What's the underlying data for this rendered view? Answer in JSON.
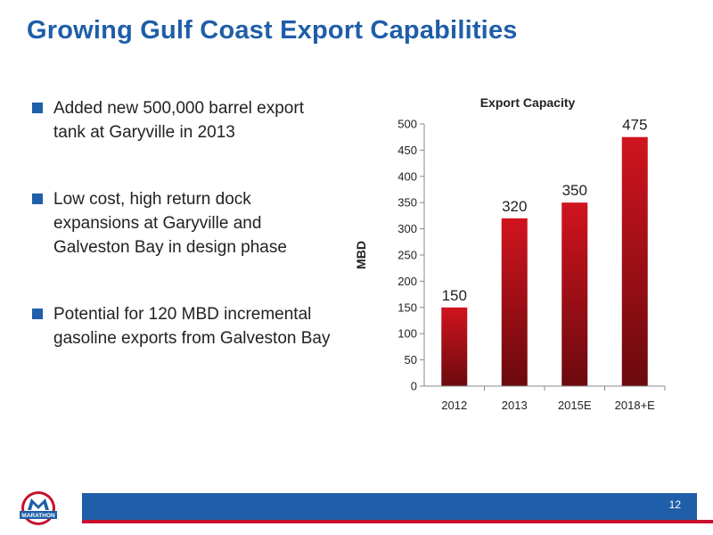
{
  "slide": {
    "title": "Growing Gulf Coast Export Capabilities",
    "page_number": "12"
  },
  "bullets": [
    "Added new 500,000 barrel export tank at Garyville in 2013",
    "Low cost, high return dock expansions at Garyville and Galveston Bay in design phase",
    "Potential for 120 MBD incremental gasoline exports from Galveston Bay"
  ],
  "logo": {
    "text": "MARATHON",
    "icon": "marathon-logo-icon"
  },
  "colors": {
    "accent_blue": "#1f5ea8",
    "accent_red": "#c8102e",
    "bar_top": "#d0141e",
    "bar_bottom": "#6b0a0e"
  },
  "chart_data": {
    "type": "bar",
    "title": "Export Capacity",
    "xlabel": "",
    "ylabel": "MBD",
    "categories": [
      "2012",
      "2013",
      "2015E",
      "2018+E"
    ],
    "values": [
      150,
      320,
      350,
      475
    ],
    "ylim": [
      0,
      500
    ],
    "yticks": [
      0,
      50,
      100,
      150,
      200,
      250,
      300,
      350,
      400,
      450,
      500
    ],
    "grid": false,
    "legend": "none"
  }
}
